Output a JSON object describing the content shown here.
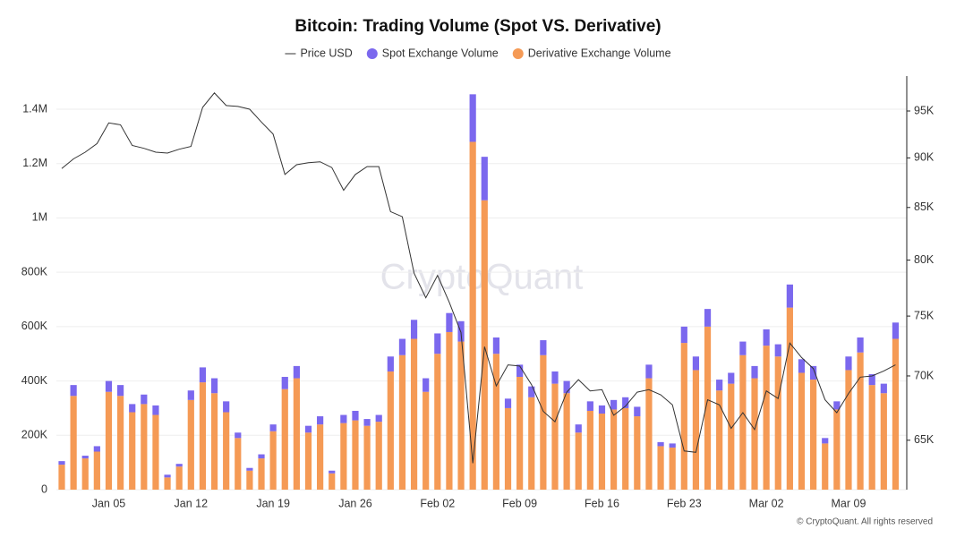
{
  "chart_data": {
    "type": "bar",
    "title": "Bitcoin: Trading Volume (Spot VS. Derivative)",
    "watermark": "CryptoQuant",
    "footer": "© CryptoQuant. All rights reserved",
    "categories": [
      null,
      null,
      null,
      null,
      "Jan 05",
      null,
      null,
      null,
      null,
      null,
      null,
      "Jan 12",
      null,
      null,
      null,
      null,
      null,
      null,
      "Jan 19",
      null,
      null,
      null,
      null,
      null,
      null,
      "Jan 26",
      null,
      null,
      null,
      null,
      null,
      null,
      "Feb 02",
      null,
      null,
      null,
      null,
      null,
      null,
      "Feb 09",
      null,
      null,
      null,
      null,
      null,
      null,
      "Feb 16",
      null,
      null,
      null,
      null,
      null,
      null,
      "Feb 23",
      null,
      null,
      null,
      null,
      null,
      null,
      "Mar 02",
      null,
      null,
      null,
      null,
      null,
      null,
      "Mar 09",
      null,
      null,
      null,
      null
    ],
    "series": [
      {
        "name": "Price USD",
        "type": "line",
        "axis": "y2",
        "color": "#333333",
        "values": [
          88900,
          89900,
          90600,
          91500,
          93700,
          93500,
          91300,
          91000,
          90600,
          90500,
          90900,
          91200,
          95400,
          97000,
          95600,
          95500,
          95200,
          93800,
          92500,
          88300,
          89300,
          89500,
          89600,
          89000,
          86700,
          88300,
          89100,
          89100,
          84600,
          84100,
          78800,
          76600,
          78600,
          76200,
          73600,
          63300,
          72400,
          69200,
          70900,
          70800,
          69300,
          67200,
          66400,
          68700,
          69700,
          68800,
          68900,
          66900,
          67600,
          68700,
          68900,
          68500,
          67700,
          64200,
          64100,
          68100,
          67700,
          65900,
          67100,
          65800,
          68800,
          68200,
          72700,
          71500,
          70600,
          68100,
          67100,
          68600,
          69900,
          70000,
          70400,
          70900
        ]
      },
      {
        "name": "Spot Exchange Volume",
        "type": "bar",
        "color": "#7b68ee",
        "values": [
          13000,
          40000,
          10000,
          20000,
          40000,
          40000,
          30000,
          35000,
          35000,
          10000,
          10000,
          35000,
          55000,
          55000,
          40000,
          20000,
          10000,
          15000,
          25000,
          45000,
          45000,
          25000,
          30000,
          10000,
          30000,
          35000,
          25000,
          25000,
          55000,
          60000,
          70000,
          50000,
          75000,
          70000,
          75000,
          175000,
          160000,
          60000,
          35000,
          45000,
          40000,
          55000,
          45000,
          45000,
          30000,
          35000,
          30000,
          35000,
          40000,
          35000,
          50000,
          15000,
          15000,
          60000,
          50000,
          65000,
          40000,
          40000,
          50000,
          45000,
          60000,
          45000,
          85000,
          50000,
          50000,
          20000,
          30000,
          50000,
          55000,
          40000,
          35000,
          60000
        ]
      },
      {
        "name": "Derivative Exchange Volume",
        "type": "bar",
        "color": "#f59a55",
        "values": [
          92000,
          345000,
          115000,
          140000,
          360000,
          345000,
          285000,
          315000,
          275000,
          45000,
          85000,
          330000,
          395000,
          355000,
          285000,
          190000,
          70000,
          115000,
          215000,
          370000,
          410000,
          210000,
          240000,
          60000,
          245000,
          255000,
          235000,
          250000,
          435000,
          495000,
          555000,
          360000,
          500000,
          580000,
          545000,
          1280000,
          1065000,
          500000,
          300000,
          415000,
          340000,
          495000,
          390000,
          355000,
          210000,
          290000,
          280000,
          295000,
          300000,
          270000,
          410000,
          160000,
          155000,
          540000,
          440000,
          600000,
          365000,
          390000,
          495000,
          410000,
          530000,
          490000,
          670000,
          430000,
          405000,
          170000,
          295000,
          440000,
          505000,
          385000,
          355000,
          555000
        ]
      }
    ],
    "ylim": [
      0,
      1522000
    ],
    "yticks": [
      0,
      {
        "value": 200000,
        "label": "200K"
      },
      {
        "value": 400000,
        "label": "400K"
      },
      {
        "value": 600000,
        "label": "600K"
      },
      {
        "value": 800000,
        "label": "800K"
      },
      {
        "value": 1000000,
        "label": "1M"
      },
      {
        "value": 1200000,
        "label": "1.2M"
      },
      {
        "value": 1400000,
        "label": "1.4M"
      }
    ],
    "y2lim": [
      61400,
      98900
    ],
    "y2_log": true,
    "y2ticks": [
      {
        "value": 65000,
        "label": "65K"
      },
      {
        "value": 70000,
        "label": "70K"
      },
      {
        "value": 75000,
        "label": "75K"
      },
      {
        "value": 80000,
        "label": "80K"
      },
      {
        "value": 85000,
        "label": "85K"
      },
      {
        "value": 90000,
        "label": "90K"
      },
      {
        "value": 95000,
        "label": "95K"
      }
    ],
    "grid": true
  }
}
